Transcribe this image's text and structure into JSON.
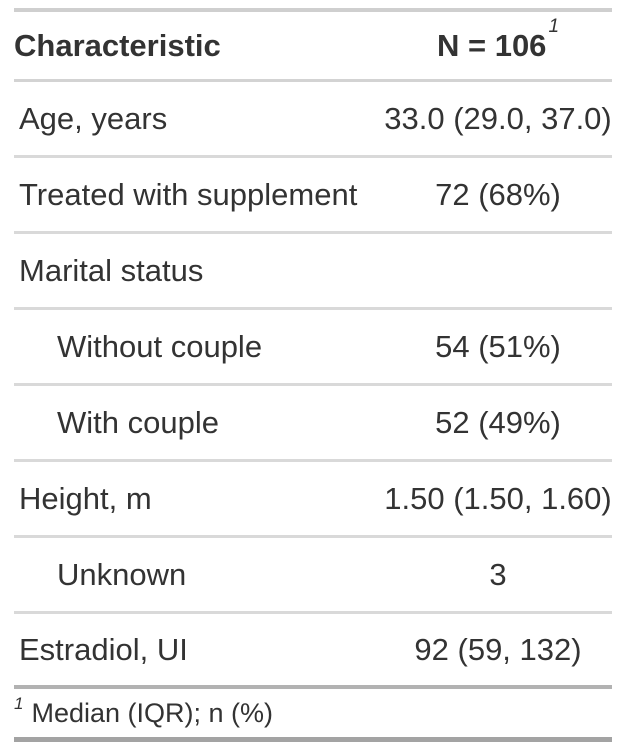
{
  "colors": {
    "text": "#333333",
    "divider_light": "#d9d9d9",
    "border_top": "#cfcfcf",
    "footnote_separator": "#b2b2b2",
    "border_bottom": "#a3a3a3",
    "background": "#ffffff"
  },
  "chart_data": {
    "type": "table",
    "title": "",
    "columns": [
      {
        "label": "Characteristic",
        "footnote_mark": ""
      },
      {
        "label": "N = 106",
        "footnote_mark": "1"
      }
    ],
    "rows": [
      {
        "label": "Age, years",
        "value": "33.0 (29.0, 37.0)",
        "indent": false
      },
      {
        "label": "Treated with supplement",
        "value": "72 (68%)",
        "indent": false
      },
      {
        "label": "Marital status",
        "value": "",
        "indent": false
      },
      {
        "label": "Without couple",
        "value": "54 (51%)",
        "indent": true
      },
      {
        "label": "With couple",
        "value": "52 (49%)",
        "indent": true
      },
      {
        "label": "Height, m",
        "value": "1.50 (1.50, 1.60)",
        "indent": false
      },
      {
        "label": "Unknown",
        "value": "3",
        "indent": true
      },
      {
        "label": "Estradiol, UI",
        "value": "92 (59, 132)",
        "indent": false
      }
    ],
    "footnotes": [
      {
        "mark": "1",
        "text": "Median (IQR); n (%)"
      }
    ]
  }
}
